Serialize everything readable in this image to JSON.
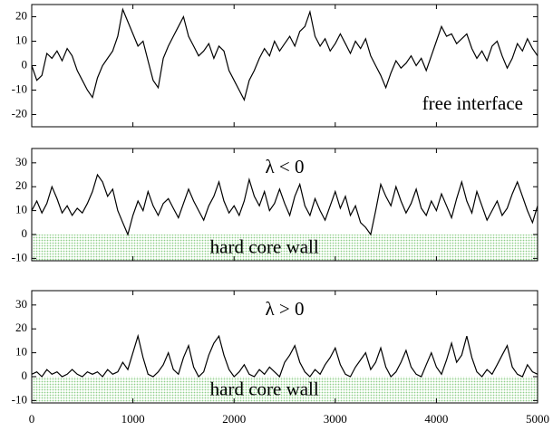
{
  "chart_data": [
    {
      "type": "line",
      "color": "#000000",
      "annotation": "free interface",
      "xlim": [
        0,
        5000
      ],
      "ylim": [
        -25,
        25
      ],
      "yticks": [
        -20,
        -10,
        0,
        10,
        20
      ],
      "x": [
        0,
        50,
        100,
        150,
        200,
        250,
        300,
        350,
        400,
        450,
        500,
        550,
        600,
        650,
        700,
        750,
        800,
        850,
        900,
        950,
        1000,
        1050,
        1100,
        1150,
        1200,
        1250,
        1300,
        1350,
        1400,
        1450,
        1500,
        1550,
        1600,
        1650,
        1700,
        1750,
        1800,
        1850,
        1900,
        1950,
        2000,
        2050,
        2100,
        2150,
        2200,
        2250,
        2300,
        2350,
        2400,
        2450,
        2500,
        2550,
        2600,
        2650,
        2700,
        2750,
        2800,
        2850,
        2900,
        2950,
        3000,
        3050,
        3100,
        3150,
        3200,
        3250,
        3300,
        3350,
        3400,
        3450,
        3500,
        3550,
        3600,
        3650,
        3700,
        3750,
        3800,
        3850,
        3900,
        3950,
        4000,
        4050,
        4100,
        4150,
        4200,
        4250,
        4300,
        4350,
        4400,
        4450,
        4500,
        4550,
        4600,
        4650,
        4700,
        4750,
        4800,
        4850,
        4900,
        4950,
        5000
      ],
      "values": [
        0,
        -6,
        -4,
        5,
        3,
        6,
        2,
        7,
        4,
        -2,
        -6,
        -10,
        -13,
        -5,
        0,
        3,
        6,
        12,
        23,
        18,
        13,
        8,
        10,
        2,
        -6,
        -9,
        3,
        8,
        12,
        16,
        20,
        12,
        8,
        4,
        6,
        9,
        3,
        8,
        6,
        -2,
        -6,
        -10,
        -14,
        -6,
        -2,
        3,
        7,
        4,
        10,
        6,
        9,
        12,
        8,
        14,
        16,
        22,
        12,
        8,
        11,
        6,
        9,
        13,
        9,
        5,
        10,
        7,
        11,
        4,
        0,
        -4,
        -9,
        -3,
        2,
        -1,
        1,
        4,
        0,
        3,
        -2,
        4,
        10,
        16,
        12,
        13,
        9,
        11,
        13,
        7,
        3,
        6,
        2,
        8,
        10,
        4,
        -1,
        3,
        9,
        6,
        11,
        7,
        4
      ]
    },
    {
      "type": "line",
      "color": "#000000",
      "annotation": "λ < 0",
      "wall_label": "hard core wall",
      "wall_color": "#8fcf8a",
      "contact_color": "#ff0000",
      "xlim": [
        0,
        5000
      ],
      "ylim": [
        -11,
        36
      ],
      "yticks": [
        -10,
        0,
        10,
        20,
        30
      ],
      "x": [
        0,
        50,
        100,
        150,
        200,
        250,
        300,
        350,
        400,
        450,
        500,
        550,
        600,
        650,
        700,
        750,
        800,
        850,
        900,
        950,
        1000,
        1050,
        1100,
        1150,
        1200,
        1250,
        1300,
        1350,
        1400,
        1450,
        1500,
        1550,
        1600,
        1650,
        1700,
        1750,
        1800,
        1850,
        1900,
        1950,
        2000,
        2050,
        2100,
        2150,
        2200,
        2250,
        2300,
        2350,
        2400,
        2450,
        2500,
        2550,
        2600,
        2650,
        2700,
        2750,
        2800,
        2850,
        2900,
        2950,
        3000,
        3050,
        3100,
        3150,
        3200,
        3250,
        3300,
        3350,
        3400,
        3450,
        3500,
        3550,
        3600,
        3650,
        3700,
        3750,
        3800,
        3850,
        3900,
        3950,
        4000,
        4050,
        4100,
        4150,
        4200,
        4250,
        4300,
        4350,
        4400,
        4450,
        4500,
        4550,
        4600,
        4650,
        4700,
        4750,
        4800,
        4850,
        4900,
        4950,
        5000
      ],
      "values": [
        10,
        14,
        9,
        13,
        20,
        15,
        9,
        12,
        8,
        11,
        9,
        13,
        18,
        25,
        22,
        16,
        19,
        10,
        5,
        0,
        8,
        14,
        10,
        18,
        12,
        8,
        13,
        15,
        11,
        7,
        13,
        19,
        14,
        10,
        6,
        12,
        16,
        22,
        14,
        9,
        12,
        8,
        14,
        23,
        16,
        12,
        18,
        10,
        13,
        19,
        13,
        8,
        16,
        21,
        12,
        8,
        15,
        10,
        6,
        12,
        18,
        11,
        16,
        8,
        12,
        5,
        3,
        0,
        10,
        21,
        16,
        12,
        20,
        14,
        9,
        13,
        19,
        11,
        8,
        14,
        10,
        17,
        12,
        7,
        15,
        22,
        14,
        9,
        18,
        12,
        6,
        10,
        14,
        8,
        11,
        17,
        22,
        16,
        10,
        5,
        12
      ]
    },
    {
      "type": "line",
      "color": "#000000",
      "annotation": "λ > 0",
      "wall_label": "hard core wall",
      "wall_color": "#8fcf8a",
      "contact_color": "#ff0000",
      "xlim": [
        0,
        5000
      ],
      "xticks": [
        0,
        1000,
        2000,
        3000,
        4000,
        5000
      ],
      "ylim": [
        -11,
        36
      ],
      "yticks": [
        -10,
        0,
        10,
        20,
        30
      ],
      "x": [
        0,
        50,
        100,
        150,
        200,
        250,
        300,
        350,
        400,
        450,
        500,
        550,
        600,
        650,
        700,
        750,
        800,
        850,
        900,
        950,
        1000,
        1050,
        1100,
        1150,
        1200,
        1250,
        1300,
        1350,
        1400,
        1450,
        1500,
        1550,
        1600,
        1650,
        1700,
        1750,
        1800,
        1850,
        1900,
        1950,
        2000,
        2050,
        2100,
        2150,
        2200,
        2250,
        2300,
        2350,
        2400,
        2450,
        2500,
        2550,
        2600,
        2650,
        2700,
        2750,
        2800,
        2850,
        2900,
        2950,
        3000,
        3050,
        3100,
        3150,
        3200,
        3250,
        3300,
        3350,
        3400,
        3450,
        3500,
        3550,
        3600,
        3650,
        3700,
        3750,
        3800,
        3850,
        3900,
        3950,
        4000,
        4050,
        4100,
        4150,
        4200,
        4250,
        4300,
        4350,
        4400,
        4450,
        4500,
        4550,
        4600,
        4650,
        4700,
        4750,
        4800,
        4850,
        4900,
        4950,
        5000
      ],
      "values": [
        1,
        2,
        0,
        3,
        1,
        2,
        0,
        1,
        3,
        1,
        0,
        2,
        1,
        2,
        0,
        3,
        1,
        2,
        6,
        3,
        10,
        17,
        8,
        1,
        0,
        2,
        5,
        10,
        3,
        1,
        8,
        13,
        4,
        0,
        2,
        9,
        14,
        17,
        9,
        3,
        0,
        2,
        5,
        1,
        0,
        3,
        1,
        4,
        2,
        0,
        6,
        9,
        13,
        6,
        2,
        0,
        3,
        1,
        5,
        8,
        12,
        5,
        1,
        0,
        4,
        7,
        10,
        3,
        6,
        12,
        4,
        0,
        2,
        6,
        11,
        4,
        1,
        0,
        5,
        10,
        4,
        1,
        7,
        14,
        6,
        9,
        17,
        8,
        2,
        0,
        3,
        1,
        5,
        9,
        13,
        4,
        1,
        0,
        5,
        2,
        1
      ]
    }
  ]
}
